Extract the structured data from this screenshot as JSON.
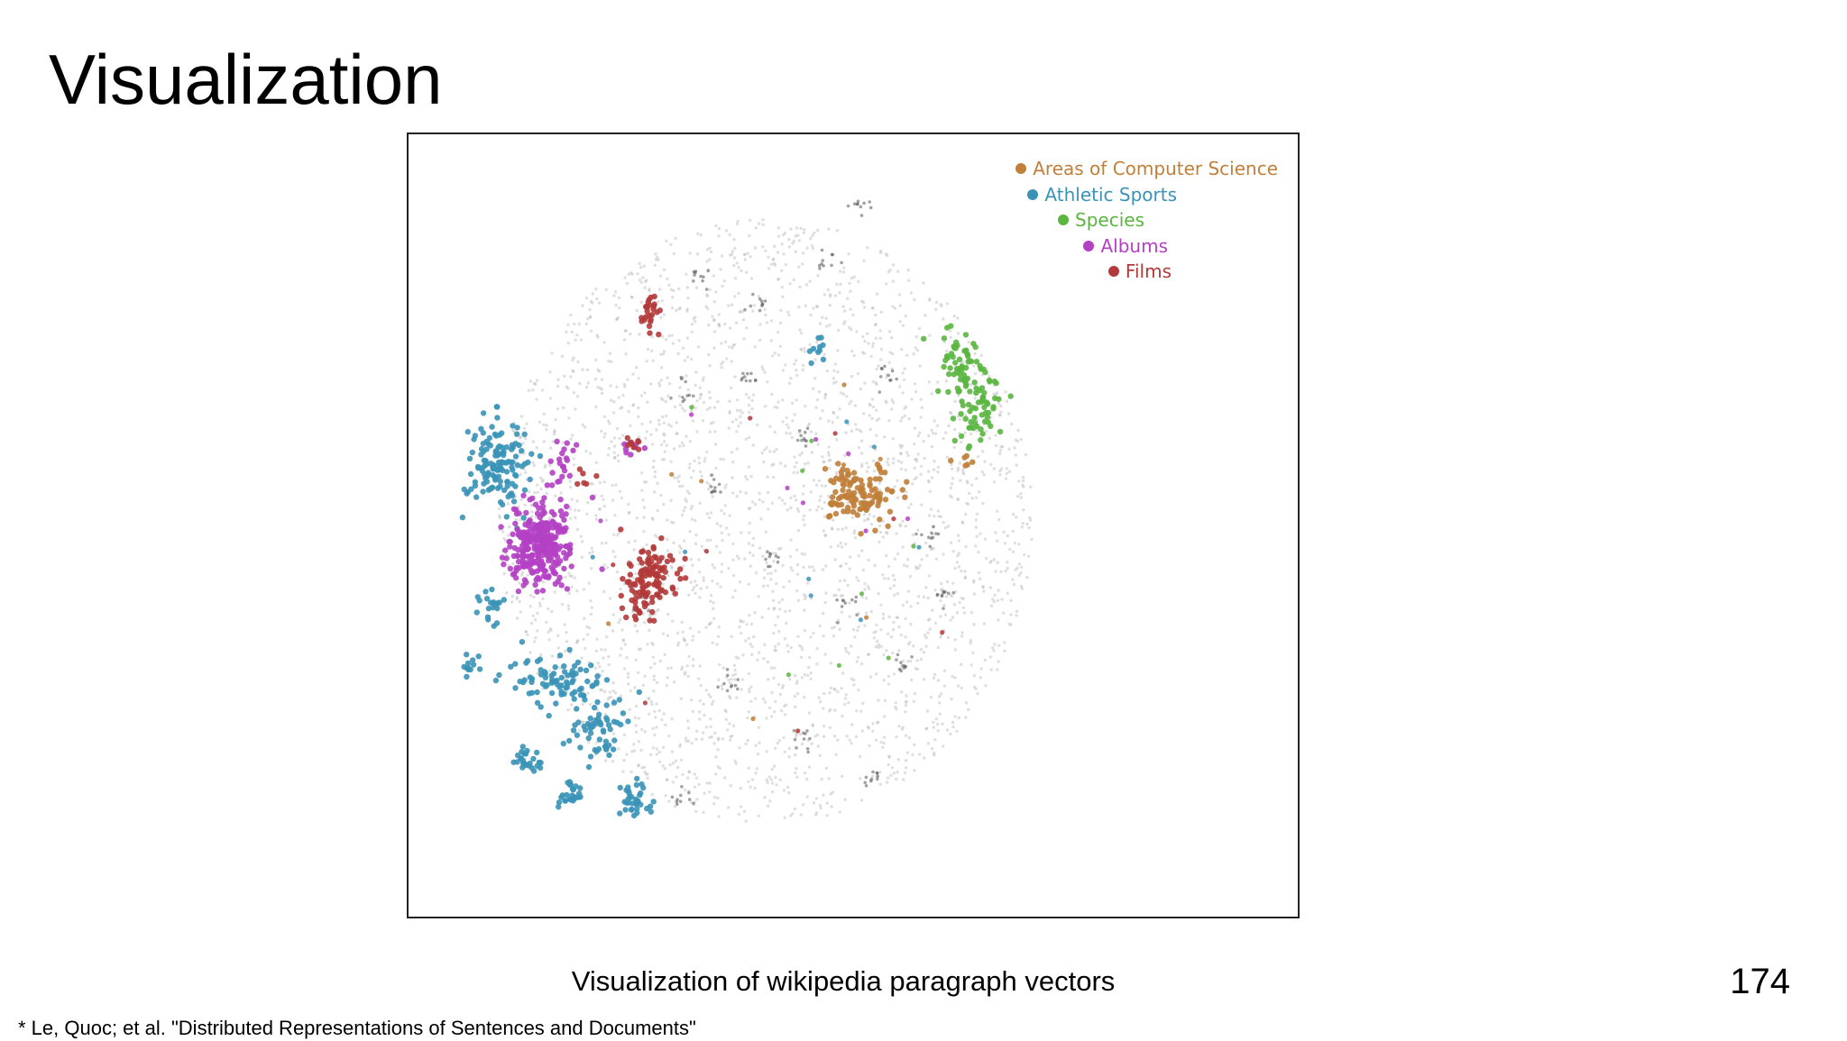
{
  "slide": {
    "title": "Visualization",
    "caption": "Visualization of wikipedia paragraph vectors",
    "page_number": "174",
    "footnote": "* Le, Quoc; et al. \"Distributed Representations of Sentences and Documents\""
  },
  "chart_data": {
    "type": "scatter",
    "title": "",
    "xlabel": "",
    "ylabel": "",
    "legend_position": "top-right",
    "background_color": "#b8b8b8",
    "series": [
      {
        "name": "Areas of Computer Science",
        "color": "#c0803a",
        "clusters": [
          {
            "cx": 0.6,
            "cy": 0.46,
            "sx": 0.025,
            "sy": 0.022,
            "n": 120
          },
          {
            "cx": 0.74,
            "cy": 0.42,
            "sx": 0.01,
            "sy": 0.01,
            "n": 6
          }
        ]
      },
      {
        "name": "Athletic Sports",
        "color": "#3a93b7",
        "clusters": [
          {
            "cx": 0.1,
            "cy": 0.42,
            "sx": 0.025,
            "sy": 0.03,
            "n": 140
          },
          {
            "cx": 0.18,
            "cy": 0.72,
            "sx": 0.03,
            "sy": 0.02,
            "n": 90
          },
          {
            "cx": 0.24,
            "cy": 0.79,
            "sx": 0.02,
            "sy": 0.02,
            "n": 50
          },
          {
            "cx": 0.29,
            "cy": 0.89,
            "sx": 0.012,
            "sy": 0.012,
            "n": 35
          },
          {
            "cx": 0.2,
            "cy": 0.88,
            "sx": 0.01,
            "sy": 0.01,
            "n": 25
          },
          {
            "cx": 0.14,
            "cy": 0.83,
            "sx": 0.012,
            "sy": 0.01,
            "n": 25
          },
          {
            "cx": 0.09,
            "cy": 0.62,
            "sx": 0.01,
            "sy": 0.012,
            "n": 20
          },
          {
            "cx": 0.06,
            "cy": 0.7,
            "sx": 0.008,
            "sy": 0.008,
            "n": 12
          },
          {
            "cx": 0.54,
            "cy": 0.26,
            "sx": 0.008,
            "sy": 0.008,
            "n": 10
          }
        ]
      },
      {
        "name": "Species",
        "color": "#5ab640",
        "clusters": [
          {
            "cx": 0.74,
            "cy": 0.28,
            "sx": 0.015,
            "sy": 0.02,
            "n": 55
          },
          {
            "cx": 0.76,
            "cy": 0.34,
            "sx": 0.015,
            "sy": 0.025,
            "n": 60
          }
        ]
      },
      {
        "name": "Albums",
        "color": "#b440c4",
        "clusters": [
          {
            "cx": 0.16,
            "cy": 0.53,
            "sx": 0.022,
            "sy": 0.028,
            "n": 300
          },
          {
            "cx": 0.19,
            "cy": 0.42,
            "sx": 0.01,
            "sy": 0.02,
            "n": 20
          },
          {
            "cx": 0.28,
            "cy": 0.4,
            "sx": 0.008,
            "sy": 0.006,
            "n": 8
          }
        ]
      },
      {
        "name": "Films",
        "color": "#b23a3a",
        "clusters": [
          {
            "cx": 0.31,
            "cy": 0.58,
            "sx": 0.018,
            "sy": 0.025,
            "n": 120
          },
          {
            "cx": 0.31,
            "cy": 0.21,
            "sx": 0.006,
            "sy": 0.015,
            "n": 25
          },
          {
            "cx": 0.29,
            "cy": 0.39,
            "sx": 0.008,
            "sy": 0.008,
            "n": 8
          },
          {
            "cx": 0.22,
            "cy": 0.44,
            "sx": 0.01,
            "sy": 0.008,
            "n": 6
          }
        ]
      }
    ]
  }
}
